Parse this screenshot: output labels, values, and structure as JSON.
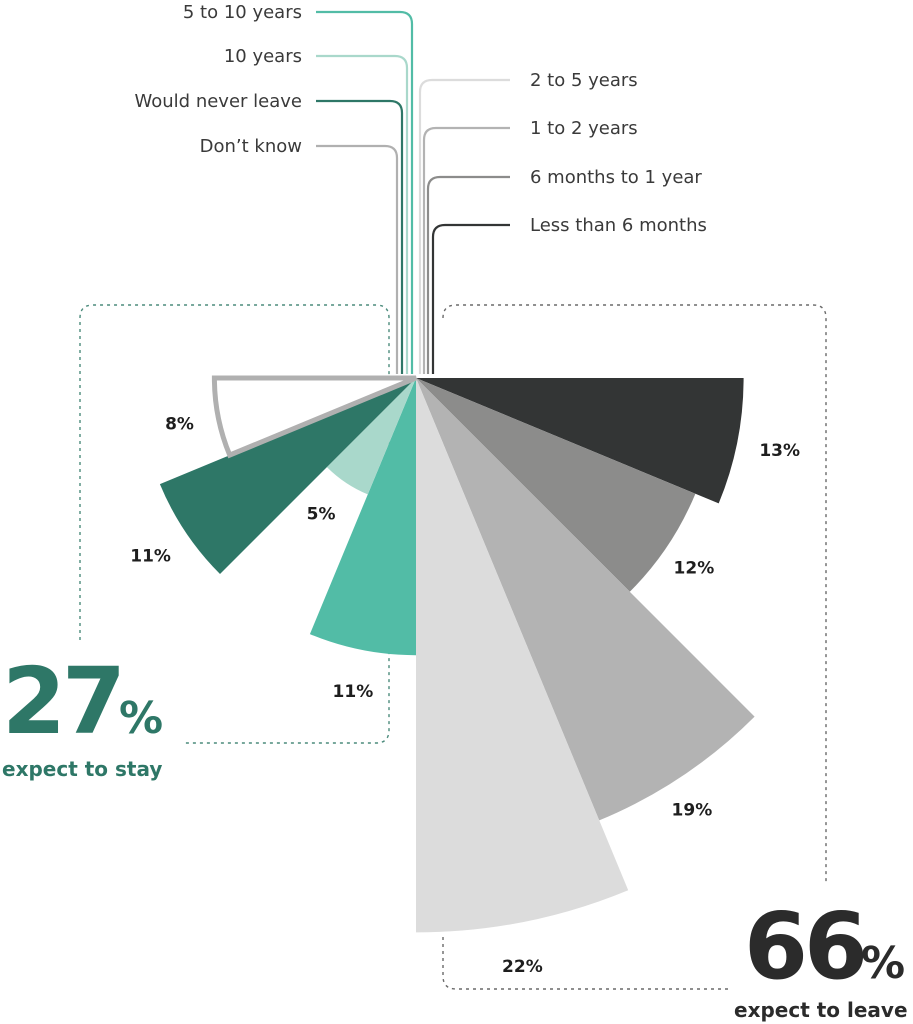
{
  "chart_data": {
    "type": "polar-area",
    "unit": "%",
    "categories": [
      {
        "label": "Less than 6 months",
        "value": 13,
        "value_label": "13%",
        "color": "#333535",
        "group": "leave"
      },
      {
        "label": "6 months to 1 year",
        "value": 12,
        "value_label": "12%",
        "color": "#8c8c8b",
        "group": "leave"
      },
      {
        "label": "1 to 2 years",
        "value": 19,
        "value_label": "19%",
        "color": "#b3b3b3",
        "group": "leave"
      },
      {
        "label": "2 to 5 years",
        "value": 22,
        "value_label": "22%",
        "color": "#dcdcdc",
        "group": "leave"
      },
      {
        "label": "5 to 10 years",
        "value": 11,
        "value_label": "11%",
        "color": "#52bca6",
        "group": "stay"
      },
      {
        "label": "10 years",
        "value": 5,
        "value_label": "5%",
        "color": "#a9d8cb",
        "group": "stay"
      },
      {
        "label": "Would never leave",
        "value": 11,
        "value_label": "11%",
        "color": "#2e7767",
        "group": "stay"
      },
      {
        "label": "Don’t know",
        "value": 8,
        "value_label": "8%",
        "color": "#ffffff",
        "stroke": "#b0b0b0",
        "group": "unknown"
      }
    ],
    "summaries": [
      {
        "group": "stay",
        "number": "27",
        "percent_sign": "%",
        "caption": "expect to stay",
        "color": "#2e7767"
      },
      {
        "group": "leave",
        "number": "66",
        "percent_sign": "%",
        "caption": "expect to leave",
        "color": "#2b2b2b"
      }
    ]
  }
}
